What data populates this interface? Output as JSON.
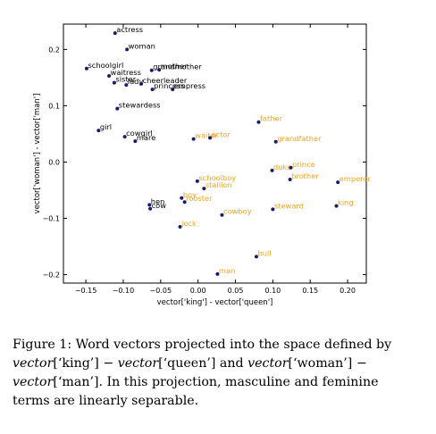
{
  "chart_data": {
    "type": "scatter",
    "title": "",
    "xlabel": "vector['king'] - vector['queen']",
    "ylabel": "vector['woman'] - vector['man']",
    "xlim": [
      -0.18,
      0.225
    ],
    "ylim": [
      -0.215,
      0.245
    ],
    "xticks": [
      -0.15,
      -0.1,
      -0.05,
      0.0,
      0.05,
      0.1,
      0.15,
      0.2
    ],
    "xtick_labels": [
      "−0.15",
      "−0.10",
      "−0.05",
      "0.00",
      "0.05",
      "0.10",
      "0.15",
      "0.20"
    ],
    "yticks": [
      0.2,
      0.1,
      0.0,
      -0.1,
      -0.2
    ],
    "ytick_labels": [
      "0.2",
      "0.1",
      "0.0",
      "−0.1",
      "−0.2"
    ],
    "grid": false,
    "point_color": "#1a1a6e",
    "series": [
      {
        "label_color": "#000000",
        "points": [
          {
            "label": "actress",
            "x": -0.111,
            "y": 0.229
          },
          {
            "label": "woman",
            "x": -0.095,
            "y": 0.2
          },
          {
            "label": "schoolgirl",
            "x": -0.149,
            "y": 0.166
          },
          {
            "label": "grandmother",
            "x": -0.062,
            "y": 0.163
          },
          {
            "label": "mother",
            "x": -0.052,
            "y": 0.164
          },
          {
            "label": "waitress",
            "x": -0.119,
            "y": 0.153
          },
          {
            "label": "sister",
            "x": -0.112,
            "y": 0.141
          },
          {
            "label": "lady",
            "x": -0.096,
            "y": 0.137
          },
          {
            "label": "cheerleader",
            "x": -0.076,
            "y": 0.139
          },
          {
            "label": "princess",
            "x": -0.061,
            "y": 0.129
          },
          {
            "label": "empress",
            "x": -0.034,
            "y": 0.129
          },
          {
            "label": "stewardess",
            "x": -0.108,
            "y": 0.095
          },
          {
            "label": "girl",
            "x": -0.133,
            "y": 0.056
          },
          {
            "label": "cowgirl",
            "x": -0.098,
            "y": 0.045
          },
          {
            "label": "mare",
            "x": -0.084,
            "y": 0.037
          },
          {
            "label": "hen",
            "x": -0.065,
            "y": -0.076
          },
          {
            "label": "cow",
            "x": -0.064,
            "y": -0.083
          }
        ]
      },
      {
        "label_color": "#f0a21e",
        "points": [
          {
            "label": "father",
            "x": 0.081,
            "y": 0.071
          },
          {
            "label": "grandfather",
            "x": 0.104,
            "y": 0.036
          },
          {
            "label": "waiter",
            "x": -0.006,
            "y": 0.041
          },
          {
            "label": "actor",
            "x": 0.016,
            "y": 0.043
          },
          {
            "label": "duke",
            "x": 0.099,
            "y": -0.015
          },
          {
            "label": "prince",
            "x": 0.124,
            "y": -0.01
          },
          {
            "label": "brother",
            "x": 0.123,
            "y": -0.031
          },
          {
            "label": "emperor",
            "x": 0.187,
            "y": -0.036
          },
          {
            "label": "schoolboy",
            "x": -0.001,
            "y": -0.034
          },
          {
            "label": "stallion",
            "x": 0.008,
            "y": -0.047
          },
          {
            "label": "boy",
            "x": -0.022,
            "y": -0.064
          },
          {
            "label": "rooster",
            "x": -0.018,
            "y": -0.071
          },
          {
            "label": "steward",
            "x": 0.1,
            "y": -0.084
          },
          {
            "label": "king",
            "x": 0.185,
            "y": -0.078
          },
          {
            "label": "cowboy",
            "x": 0.032,
            "y": -0.094
          },
          {
            "label": "jock",
            "x": -0.024,
            "y": -0.115
          },
          {
            "label": "bull",
            "x": 0.078,
            "y": -0.168
          },
          {
            "label": "man",
            "x": 0.026,
            "y": -0.199
          }
        ]
      }
    ]
  },
  "caption": {
    "line1": "Figure 1: Word vectors projected into the space defined by",
    "line2_a": "vector",
    "line2_b": "[‘king’] − ",
    "line2_c": "vector",
    "line2_d": "[‘queen’]",
    "line2_e": " and ",
    "line2_f": "vector",
    "line2_g": "[‘woman’] −",
    "line3_a": "vector",
    "line3_b": "[‘man’]",
    "line3_c": ".  In this projection, masculine and feminine",
    "line4": "terms are linearly separable."
  }
}
